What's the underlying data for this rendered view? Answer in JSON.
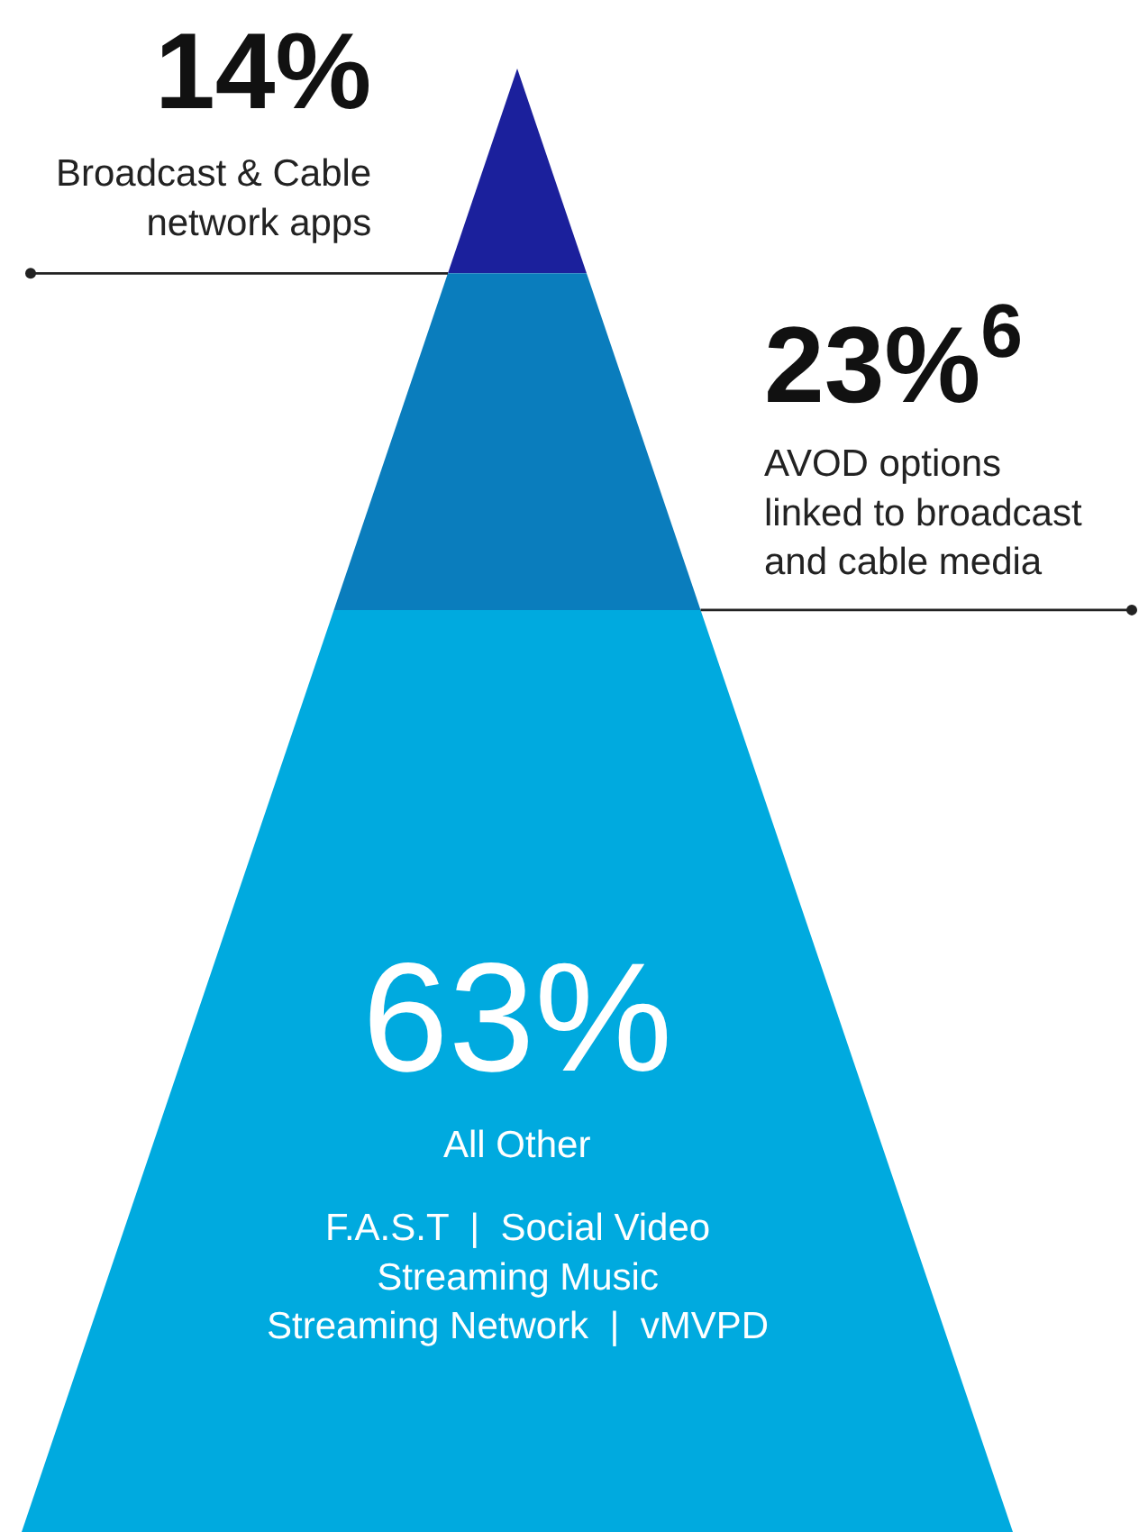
{
  "chart_data": {
    "type": "other",
    "categories": [
      "Broadcast & Cable\nnetwork apps",
      "AVOD options\nlinked to broadcast\nand cable media",
      "All Other"
    ],
    "values": [
      14,
      23,
      63
    ],
    "value_labels": [
      "14%",
      "23%$^{6}$",
      "63%"
    ],
    "colors": [
      "#1b209c",
      "#0a7dbd",
      "#00aadf"
    ],
    "annotations": [
      "F.A.S.T  |  Social Video\nStreaming Music\nStreaming Network  |  vMVPD"
    ]
  }
}
